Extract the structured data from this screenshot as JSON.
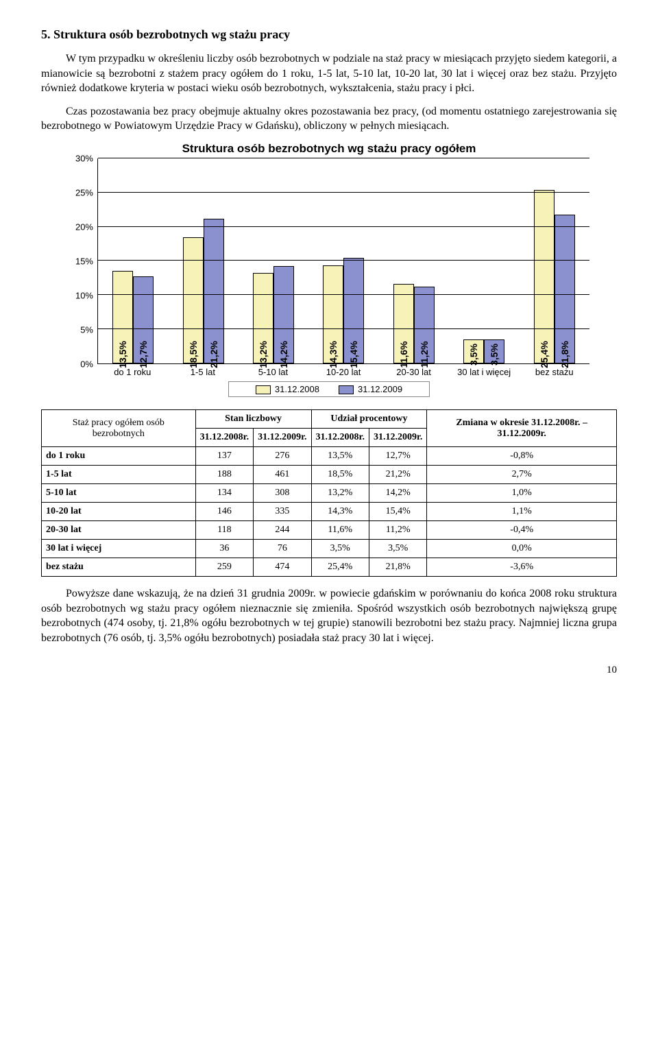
{
  "heading": "5. Struktura osób bezrobotnych wg stażu pracy",
  "para1": "W tym przypadku w określeniu liczby osób bezrobotnych w podziale na staż pracy w miesiącach przyjęto siedem kategorii, a mianowicie są bezrobotni z stażem pracy ogółem do 1 roku, 1-5 lat, 5-10 lat, 10-20 lat, 30 lat i więcej oraz bez stażu. Przyjęto również dodatkowe kryteria w postaci wieku osób bezrobotnych, wykształcenia, stażu pracy i płci.",
  "para2": "Czas pozostawania bez pracy obejmuje aktualny okres pozostawania bez pracy, (od momentu ostatniego zarejestrowania się bezrobotnego w Powiatowym Urzędzie Pracy w Gdańsku), obliczony w pełnych miesiącach.",
  "chart": {
    "title": "Struktura osób bezrobotnych wg stażu pracy ogółem",
    "ylim": [
      0,
      30
    ],
    "ytick_step": 5,
    "yticks": [
      "0%",
      "5%",
      "10%",
      "15%",
      "20%",
      "25%",
      "30%"
    ],
    "categories": [
      "do 1 roku",
      "1-5 lat",
      "5-10 lat",
      "10-20 lat",
      "20-30 lat",
      "30 lat i więcej",
      "bez stażu"
    ],
    "series": [
      {
        "name": "31.12.2008",
        "color": "#f6f2b8",
        "values": [
          13.5,
          18.5,
          13.2,
          14.3,
          11.6,
          3.5,
          25.4
        ]
      },
      {
        "name": "31.12.2009",
        "color": "#8b91cf",
        "values": [
          12.7,
          21.2,
          14.2,
          15.4,
          11.2,
          3.5,
          21.8
        ]
      }
    ],
    "value_labels": [
      [
        "13,5%",
        "12,7%"
      ],
      [
        "18,5%",
        "21,2%"
      ],
      [
        "13,2%",
        "14,2%"
      ],
      [
        "14,3%",
        "15,4%"
      ],
      [
        "11,6%",
        "11,2%"
      ],
      [
        "3,5%",
        "3,5%"
      ],
      [
        "25,4%",
        "21,8%"
      ]
    ]
  },
  "table": {
    "head1": "Staż pracy ogółem osób bezrobotnych",
    "group1": "Stan liczbowy",
    "group2": "Udział procentowy",
    "group3": "Zmiana w okresie 31.12.2008r. – 31.12.2009r.",
    "sub": [
      "31.12.2008r.",
      "31.12.2009r.",
      "31.12.2008r.",
      "31.12.2009r."
    ],
    "rows": [
      {
        "label": "do 1 roku",
        "c": [
          "137",
          "276",
          "13,5%",
          "12,7%",
          "-0,8%"
        ]
      },
      {
        "label": "1-5 lat",
        "c": [
          "188",
          "461",
          "18,5%",
          "21,2%",
          "2,7%"
        ]
      },
      {
        "label": "5-10 lat",
        "c": [
          "134",
          "308",
          "13,2%",
          "14,2%",
          "1,0%"
        ]
      },
      {
        "label": "10-20 lat",
        "c": [
          "146",
          "335",
          "14,3%",
          "15,4%",
          "1,1%"
        ]
      },
      {
        "label": "20-30 lat",
        "c": [
          "118",
          "244",
          "11,6%",
          "11,2%",
          "-0,4%"
        ]
      },
      {
        "label": "30 lat i więcej",
        "c": [
          "36",
          "76",
          "3,5%",
          "3,5%",
          "0,0%"
        ]
      },
      {
        "label": "bez stażu",
        "c": [
          "259",
          "474",
          "25,4%",
          "21,8%",
          "-3,6%"
        ]
      }
    ]
  },
  "para3": "Powyższe dane wskazują, że na dzień 31 grudnia 2009r. w powiecie gdańskim w porównaniu do końca 2008 roku struktura osób bezrobotnych wg stażu pracy ogółem nieznacznie się zmieniła. Spośród wszystkich osób bezrobotnych największą grupę bezrobotnych (474 osoby, tj. 21,8% ogółu bezrobotnych w tej grupie) stanowili bezrobotni bez stażu pracy. Najmniej liczna grupa bezrobotnych (76 osób, tj. 3,5% ogółu bezrobotnych) posiadała staż pracy 30 lat i więcej.",
  "pagenum": "10"
}
